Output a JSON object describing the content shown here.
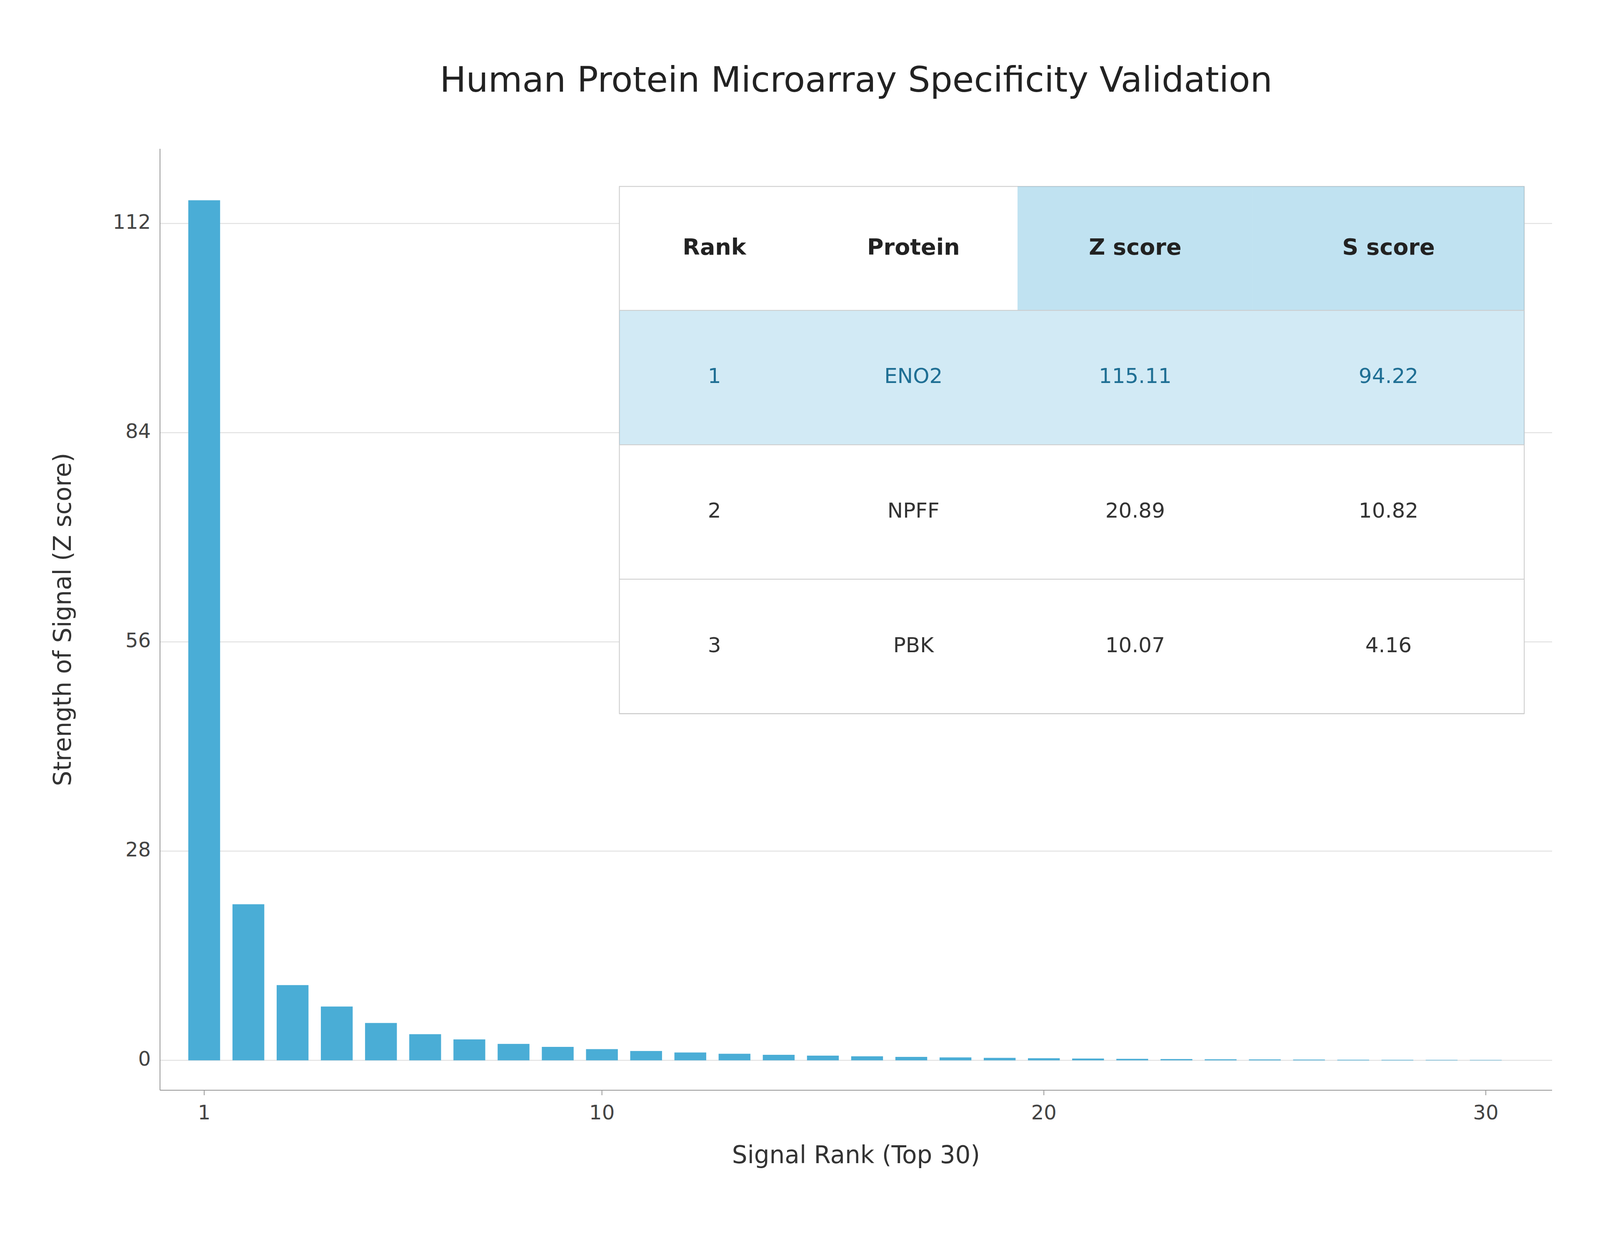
{
  "chart_data": {
    "type": "bar",
    "title": "Human Protein Microarray Specificity Validation",
    "xlabel": "Signal Rank (Top 30)",
    "ylabel": "Strength of Signal (Z score)",
    "x": [
      1,
      2,
      3,
      4,
      5,
      6,
      7,
      8,
      9,
      10,
      11,
      12,
      13,
      14,
      15,
      16,
      17,
      18,
      19,
      20,
      21,
      22,
      23,
      24,
      25,
      26,
      27,
      28,
      29,
      30
    ],
    "values": [
      115.11,
      20.89,
      10.07,
      7.2,
      5.0,
      3.5,
      2.8,
      2.2,
      1.8,
      1.5,
      1.25,
      1.05,
      0.88,
      0.74,
      0.63,
      0.54,
      0.46,
      0.39,
      0.33,
      0.28,
      0.24,
      0.2,
      0.17,
      0.14,
      0.12,
      0.1,
      0.08,
      0.07,
      0.06,
      0.05
    ],
    "color": "#4AADD6",
    "xlim": [
      0.0,
      31.5
    ],
    "xticks": [
      1,
      10,
      20,
      30
    ],
    "ylim": [
      -4,
      122
    ],
    "yticks": [
      0,
      28,
      56,
      84,
      112
    ],
    "grid": true,
    "table": {
      "headers": [
        "Rank",
        "Protein",
        "Z score",
        "S score"
      ],
      "rows": [
        [
          "1",
          "ENO2",
          "115.11",
          "94.22"
        ],
        [
          "2",
          "NPFF",
          "20.89",
          "10.82"
        ],
        [
          "3",
          "PBK",
          "10.07",
          "4.16"
        ]
      ]
    }
  }
}
